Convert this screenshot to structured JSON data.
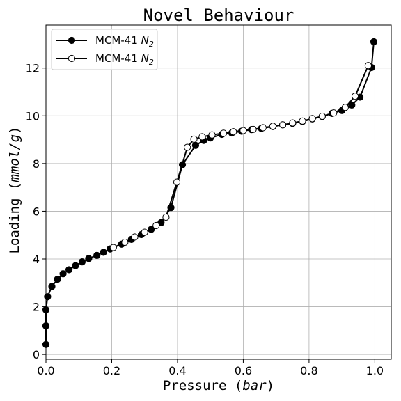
{
  "chart_data": {
    "type": "line",
    "title": "Novel Behaviour",
    "xlabel": {
      "text": "Pressure ",
      "unit": "bar"
    },
    "ylabel": {
      "text": "Loading ",
      "unit": "mmol/g"
    },
    "xlim": [
      0,
      1.05
    ],
    "ylim": [
      -0.2,
      13.8
    ],
    "xticks": [
      0.0,
      0.2,
      0.4,
      0.6,
      0.8,
      1.0
    ],
    "xtick_labels": [
      "0.0",
      "0.2",
      "0.4",
      "0.6",
      "0.8",
      "1.0"
    ],
    "yticks": [
      0,
      2,
      4,
      6,
      8,
      10,
      12
    ],
    "ytick_labels": [
      "0",
      "2",
      "4",
      "6",
      "8",
      "10",
      "12"
    ],
    "grid": true,
    "legend_position": "top-left",
    "colors": {
      "line": "#000000",
      "grid": "#b0b0b0"
    },
    "series": [
      {
        "name": "MCM-41",
        "subscript": "N",
        "sub": "2",
        "marker": "filled-circle",
        "x": [
          0.0,
          0.0,
          0.0,
          0.005,
          0.018,
          0.035,
          0.052,
          0.07,
          0.09,
          0.11,
          0.13,
          0.155,
          0.175,
          0.195,
          0.23,
          0.26,
          0.29,
          0.32,
          0.35,
          0.38,
          0.415,
          0.455,
          0.48,
          0.5,
          0.535,
          0.565,
          0.595,
          0.625,
          0.655,
          0.69,
          0.72,
          0.75,
          0.78,
          0.81,
          0.84,
          0.87,
          0.9,
          0.93,
          0.955,
          0.99,
          0.997
        ],
        "y": [
          0.42,
          1.2,
          1.87,
          2.42,
          2.85,
          3.15,
          3.38,
          3.55,
          3.72,
          3.88,
          4.02,
          4.15,
          4.28,
          4.42,
          4.62,
          4.82,
          5.02,
          5.24,
          5.52,
          6.15,
          7.95,
          8.76,
          8.97,
          9.07,
          9.22,
          9.28,
          9.35,
          9.42,
          9.47,
          9.55,
          9.62,
          9.68,
          9.76,
          9.87,
          9.97,
          10.1,
          10.22,
          10.45,
          10.78,
          12.02,
          13.1
        ]
      },
      {
        "name": "MCM-41",
        "subscript": "N",
        "sub": "2",
        "marker": "open-circle",
        "x": [
          0.205,
          0.24,
          0.27,
          0.3,
          0.335,
          0.365,
          0.398,
          0.43,
          0.45,
          0.475,
          0.505,
          0.54,
          0.57,
          0.6,
          0.63,
          0.66,
          0.69,
          0.72,
          0.75,
          0.78,
          0.81,
          0.84,
          0.875,
          0.91,
          0.94,
          0.98
        ],
        "y": [
          4.48,
          4.7,
          4.92,
          5.12,
          5.4,
          5.75,
          7.22,
          8.68,
          9.02,
          9.12,
          9.2,
          9.27,
          9.33,
          9.38,
          9.43,
          9.5,
          9.56,
          9.62,
          9.7,
          9.78,
          9.88,
          9.98,
          10.12,
          10.35,
          10.82,
          12.1
        ]
      }
    ]
  }
}
